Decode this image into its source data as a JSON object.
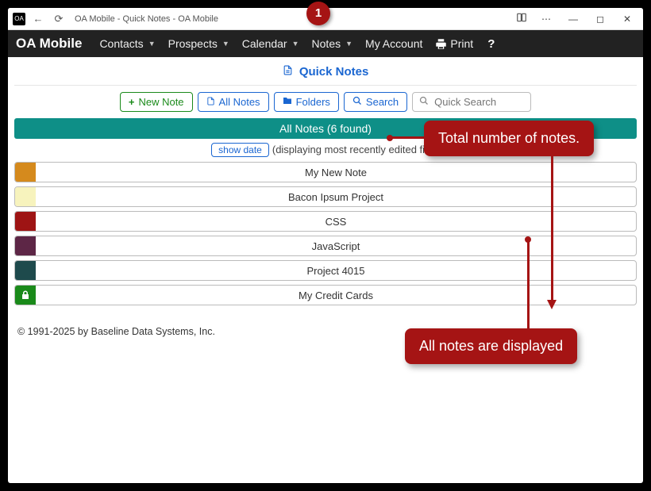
{
  "window": {
    "app_icon_text": "OA",
    "title": "OA Mobile - Quick Notes - OA Mobile"
  },
  "nav": {
    "brand": "OA Mobile",
    "items": [
      {
        "label": "Contacts",
        "dropdown": true
      },
      {
        "label": "Prospects",
        "dropdown": true
      },
      {
        "label": "Calendar",
        "dropdown": true
      },
      {
        "label": "Notes",
        "dropdown": true
      },
      {
        "label": "My Account",
        "dropdown": false
      }
    ],
    "print_label": "Print",
    "help_label": "?"
  },
  "page": {
    "title": "Quick Notes",
    "toolbar": {
      "new_note": "New Note",
      "all_notes": "All Notes",
      "folders": "Folders",
      "search": "Search",
      "quick_search_placeholder": "Quick Search"
    },
    "banner": "All Notes (6 found)",
    "show_date_label": "show date",
    "subline_text": "(displaying most recently edited first)",
    "notes": [
      {
        "title": "My New Note",
        "color": "#d58a1d",
        "locked": false
      },
      {
        "title": "Bacon Ipsum Project",
        "color": "#f7f3bd",
        "locked": false
      },
      {
        "title": "CSS",
        "color": "#9e1414",
        "locked": false
      },
      {
        "title": "JavaScript",
        "color": "#5d2646",
        "locked": false
      },
      {
        "title": "Project 4015",
        "color": "#1e4a4c",
        "locked": false
      },
      {
        "title": "My Credit Cards",
        "color": "#1a8a1a",
        "locked": true
      }
    ],
    "footer": "© 1991-2025 by Baseline Data Systems, Inc."
  },
  "annotations": {
    "marker1": "1",
    "callout1": "Total number of notes.",
    "callout2": "All notes are displayed"
  },
  "colors": {
    "navbar_bg": "#222222",
    "banner_bg": "#0e8f87",
    "link_blue": "#1a66d1",
    "callout_bg": "#a51414"
  }
}
